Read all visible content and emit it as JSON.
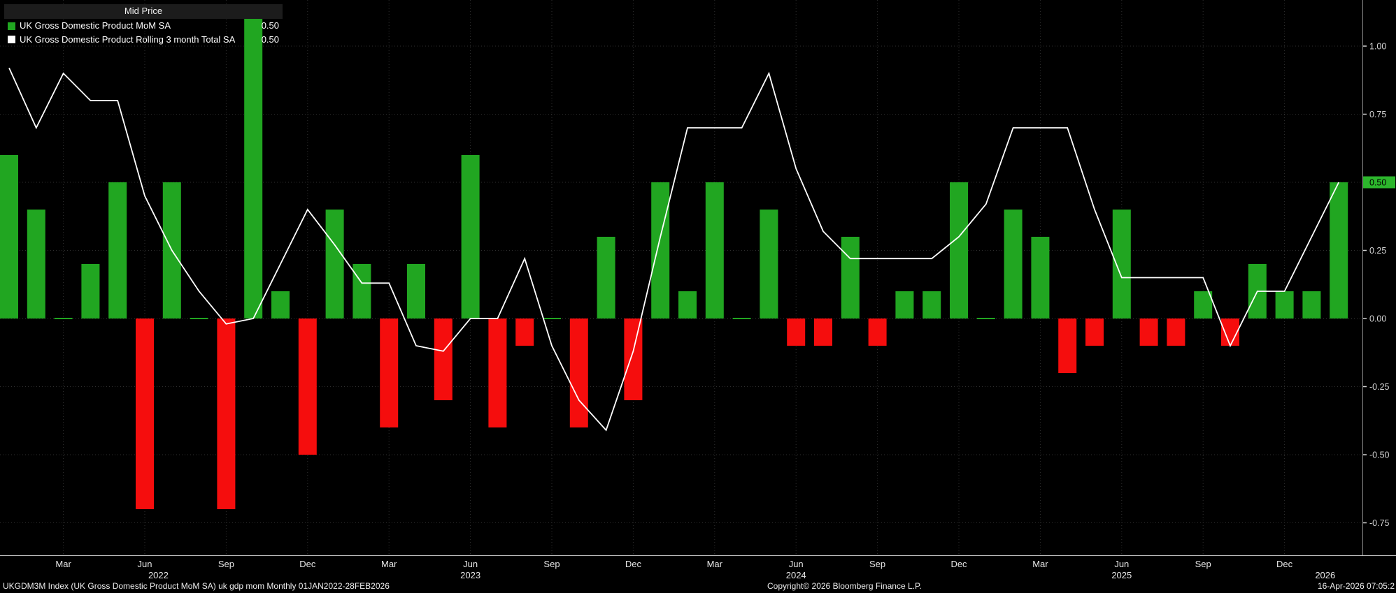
{
  "legend": {
    "header": "Mid Price",
    "series": [
      {
        "label": "UK Gross Domestic Product MoM SA",
        "value": "0.50"
      },
      {
        "label": "UK Gross Domestic Product Rolling 3 month Total SA",
        "value": "0.50"
      }
    ]
  },
  "y_axis": {
    "tick_labels": [
      "1.00",
      "0.75",
      "0.50",
      "0.25",
      "0.00",
      "-0.25",
      "-0.50",
      "-0.75"
    ],
    "last_price": "0.50"
  },
  "footer": {
    "left": "UKGDM3M Index (UK Gross Domestic Product MoM SA) uk gdp mom Monthly 01JAN2022-28FEB2026",
    "center": "Copyright© 2026 Bloomberg Finance L.P.",
    "right": "16-Apr-2026 07:05:2"
  },
  "colors": {
    "up": "#21a621",
    "down": "#f50d0d",
    "line": "#ffffff",
    "grid": "#2f2f2f",
    "zero_grid": "#3d3d3d",
    "axis_text": "#d4d4d4",
    "month_text": "#e6e6e6",
    "badge_bg": "#2cb62c",
    "badge_text": "#000000",
    "axis_spine": "#8a8a8a",
    "bottom_axis": "#c8c8c8"
  },
  "chart_data": {
    "type": "bar",
    "subtype": "bar-with-line-overlay",
    "title": "Mid Price",
    "xlabel": "",
    "ylabel": "",
    "ylim": [
      -0.85,
      1.15
    ],
    "y_ticks": [
      1.0,
      0.75,
      0.5,
      0.25,
      0.0,
      -0.25,
      -0.5,
      -0.75
    ],
    "grid": "dotted",
    "legend_position": "top-left",
    "x": [
      "Jan 2022",
      "Feb 2022",
      "Mar 2022",
      "Apr 2022",
      "May 2022",
      "Jun 2022",
      "Jul 2022",
      "Aug 2022",
      "Sep 2022",
      "Oct 2022",
      "Nov 2022",
      "Dec 2022",
      "Jan 2023",
      "Feb 2023",
      "Mar 2023",
      "Apr 2023",
      "May 2023",
      "Jun 2023",
      "Jul 2023",
      "Aug 2023",
      "Sep 2023",
      "Oct 2023",
      "Nov 2023",
      "Dec 2023",
      "Jan 2024",
      "Feb 2024",
      "Mar 2024",
      "Apr 2024",
      "May 2024",
      "Jun 2024",
      "Jul 2024",
      "Aug 2024",
      "Sep 2024",
      "Oct 2024",
      "Nov 2024",
      "Dec 2024",
      "Jan 2025",
      "Feb 2025",
      "Mar 2025",
      "Apr 2025",
      "May 2025",
      "Jun 2025",
      "Jul 2025",
      "Aug 2025",
      "Sep 2025",
      "Oct 2025",
      "Nov 2025",
      "Dec 2025",
      "Jan 2026",
      "Feb 2026"
    ],
    "series": [
      {
        "name": "UK Gross Domestic Product MoM SA",
        "type": "bar",
        "values": [
          0.6,
          0.4,
          0.0,
          0.2,
          0.5,
          -0.7,
          0.5,
          0.0,
          -0.7,
          1.1,
          0.1,
          -0.5,
          0.4,
          0.2,
          -0.4,
          0.2,
          -0.3,
          0.6,
          -0.4,
          -0.1,
          0.0,
          -0.4,
          0.3,
          -0.3,
          0.5,
          0.1,
          0.5,
          0.0,
          0.4,
          -0.1,
          -0.1,
          0.3,
          -0.1,
          0.1,
          0.1,
          0.5,
          0.0,
          0.4,
          0.3,
          -0.2,
          -0.1,
          0.4,
          -0.1,
          -0.1,
          0.1,
          -0.1,
          0.2,
          0.1,
          0.1,
          0.5
        ]
      },
      {
        "name": "UK Gross Domestic Product Rolling 3 month Total SA",
        "type": "line",
        "values": [
          0.92,
          0.7,
          0.9,
          0.8,
          0.8,
          0.45,
          0.25,
          0.1,
          -0.02,
          0.0,
          0.2,
          0.4,
          0.27,
          0.13,
          0.13,
          -0.1,
          -0.12,
          0.0,
          0.0,
          0.22,
          -0.1,
          -0.3,
          -0.41,
          -0.12,
          0.3,
          0.7,
          0.7,
          0.7,
          0.9,
          0.55,
          0.32,
          0.22,
          0.22,
          0.22,
          0.22,
          0.3,
          0.42,
          0.7,
          0.7,
          0.7,
          0.4,
          0.15,
          0.15,
          0.15,
          0.15,
          -0.1,
          0.1,
          0.1,
          0.3,
          0.5
        ]
      }
    ],
    "x_quarter_ticks": [
      {
        "i": 2,
        "label": "Mar"
      },
      {
        "i": 5,
        "label": "Jun"
      },
      {
        "i": 8,
        "label": "Sep"
      },
      {
        "i": 11,
        "label": "Dec"
      },
      {
        "i": 14,
        "label": "Mar"
      },
      {
        "i": 17,
        "label": "Jun"
      },
      {
        "i": 20,
        "label": "Sep"
      },
      {
        "i": 23,
        "label": "Dec"
      },
      {
        "i": 26,
        "label": "Mar"
      },
      {
        "i": 29,
        "label": "Jun"
      },
      {
        "i": 32,
        "label": "Sep"
      },
      {
        "i": 35,
        "label": "Dec"
      },
      {
        "i": 38,
        "label": "Mar"
      },
      {
        "i": 41,
        "label": "Jun"
      },
      {
        "i": 44,
        "label": "Sep"
      },
      {
        "i": 47,
        "label": "Dec"
      }
    ],
    "year_labels": [
      {
        "i": 5.5,
        "label": "2022"
      },
      {
        "i": 17,
        "label": "2023"
      },
      {
        "i": 29,
        "label": "2024"
      },
      {
        "i": 41,
        "label": "2025"
      },
      {
        "i": 48.5,
        "label": "2026"
      }
    ]
  }
}
